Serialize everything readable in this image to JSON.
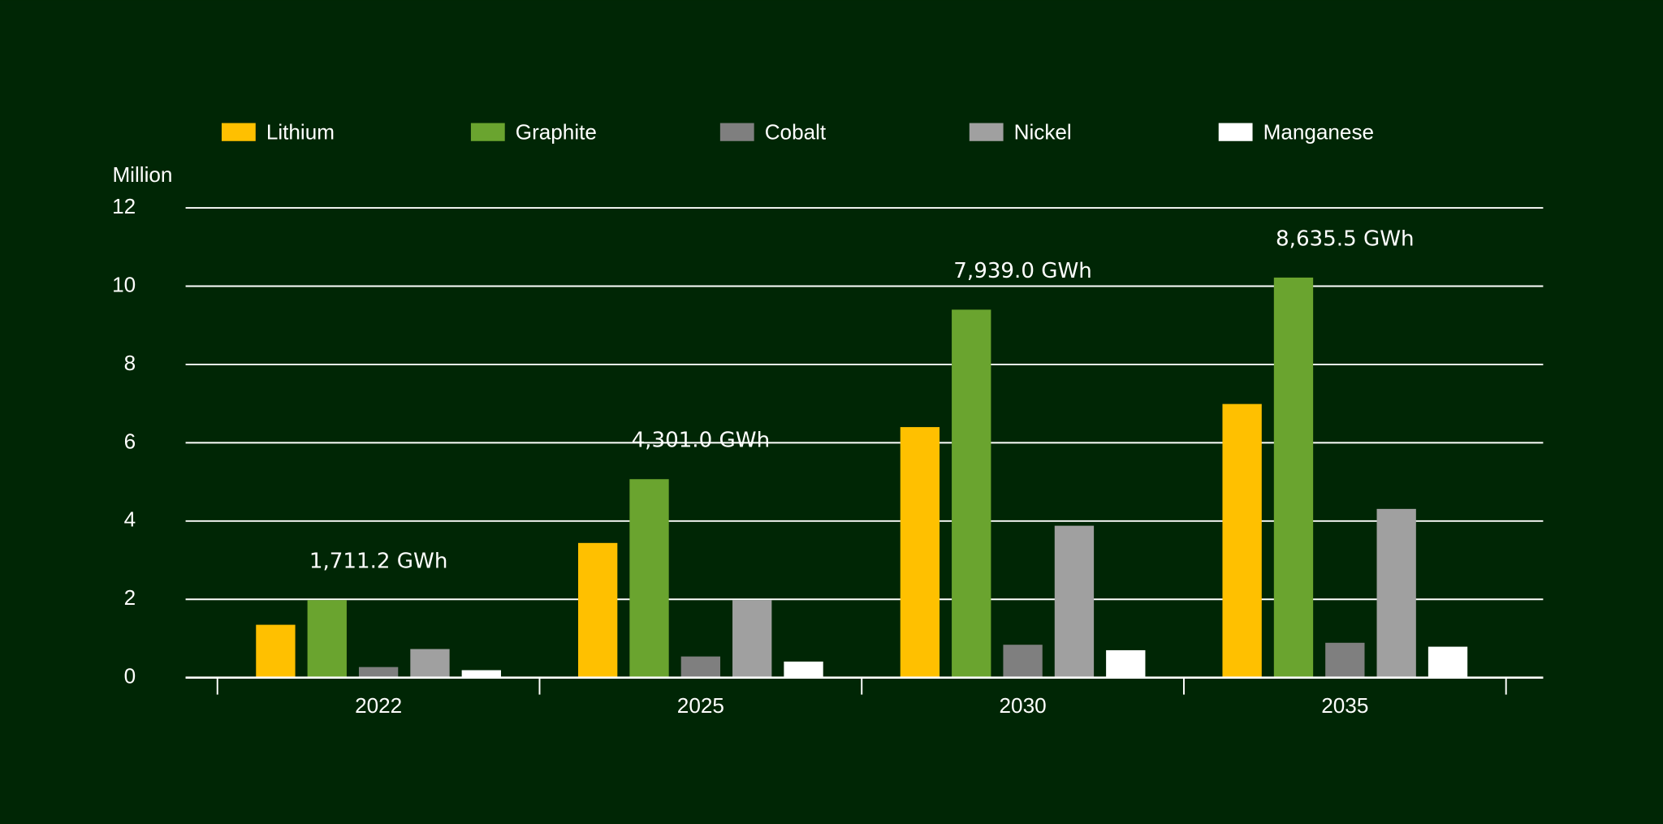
{
  "chart_data": {
    "type": "bar",
    "y_label": "Million",
    "categories": [
      "2022",
      "2025",
      "2030",
      "2035"
    ],
    "annotations": [
      "1,711.2 GWh",
      "4,301.0 GWh",
      "7,939.0 GWh",
      "8,635.5 GWh"
    ],
    "series": [
      {
        "name": "Lithium",
        "color": "#ffc000",
        "values": [
          1.35,
          3.44,
          6.4,
          6.99
        ]
      },
      {
        "name": "Graphite",
        "color": "#6aa42f",
        "values": [
          1.98,
          5.07,
          9.4,
          10.22
        ]
      },
      {
        "name": "Cobalt",
        "color": "#7f7f7f",
        "values": [
          0.27,
          0.54,
          0.84,
          0.89
        ]
      },
      {
        "name": "Nickel",
        "color": "#a0a0a0",
        "values": [
          0.73,
          1.98,
          3.88,
          4.31
        ]
      },
      {
        "name": "Manganese",
        "color": "#ffffff",
        "values": [
          0.19,
          0.41,
          0.7,
          0.79
        ]
      }
    ],
    "ylim": [
      0,
      12
    ],
    "yticks": [
      0,
      2,
      4,
      6,
      8,
      10,
      12
    ],
    "grid": true,
    "legend": "top"
  }
}
